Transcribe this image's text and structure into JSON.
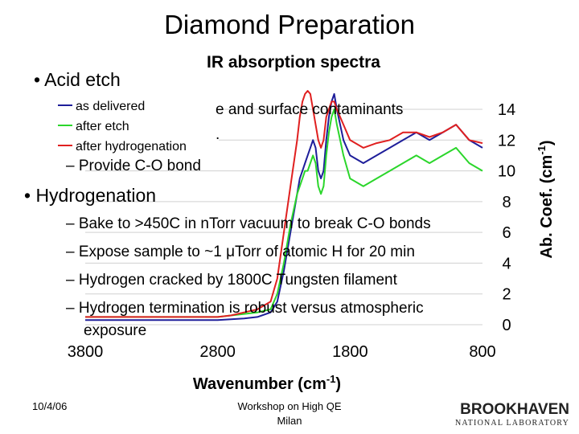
{
  "slide": {
    "title": "Diamond Preparation",
    "bullets": [
      {
        "text": "• Acid etch",
        "sub": [
          {
            "text": "e and surface contaminants"
          },
          {
            "text": "."
          },
          {
            "text": "– Provide C-O bond"
          }
        ]
      },
      {
        "text": "• Hydrogenation",
        "sub": [
          {
            "text": "– Bake to >450C in nTorr vacuum to break C-O bonds"
          },
          {
            "text": "– Expose sample to ~1 μTorr of atomic H for 20 min"
          },
          {
            "text": "– Hydrogen cracked by 1800C Tungsten filament"
          },
          {
            "text": "– Hydrogen termination is robust versus atmospheric"
          },
          {
            "text": "exposure"
          }
        ]
      }
    ]
  },
  "footer": {
    "date": "10/4/06",
    "line1": "Workshop on High QE",
    "line2": "Milan",
    "logo_name": "BROOKHAVEN",
    "logo_sub": "NATIONAL LABORATORY"
  },
  "chart_data": {
    "type": "line",
    "title": "IR absorption spectra",
    "xlabel": "Wavenumber (cm",
    "xlabel_sup": "-1",
    "xlabel_end": ")",
    "ylabel": "Ab. Coef. (cm",
    "ylabel_sup": "-1",
    "ylabel_end": ")",
    "xlim": [
      3800,
      800
    ],
    "ylim": [
      0,
      14
    ],
    "x_ticks": [
      "3800",
      "2800",
      "1800",
      "800"
    ],
    "y_ticks": [
      "0",
      "2",
      "4",
      "6",
      "8",
      "10",
      "12",
      "14"
    ],
    "legend": [
      "as delivered",
      "after etch",
      "after hydrogenation"
    ],
    "colors": {
      "as delivered": "#1e1e9a",
      "after etch": "#2bd62b",
      "after hydrogenation": "#e02020"
    },
    "x": [
      3800,
      3600,
      3400,
      3200,
      3000,
      2800,
      2700,
      2600,
      2500,
      2400,
      2350,
      2300,
      2250,
      2200,
      2180,
      2160,
      2140,
      2120,
      2100,
      2080,
      2060,
      2040,
      2020,
      2000,
      1980,
      1960,
      1940,
      1920,
      1900,
      1850,
      1800,
      1700,
      1600,
      1500,
      1400,
      1300,
      1200,
      1100,
      1000,
      900,
      800
    ],
    "series": [
      {
        "name": "as delivered",
        "values": [
          0.3,
          0.3,
          0.3,
          0.3,
          0.3,
          0.3,
          0.35,
          0.4,
          0.5,
          0.8,
          1.5,
          3.5,
          6.0,
          8.5,
          9.5,
          10.0,
          10.5,
          11.0,
          11.5,
          12.0,
          11.5,
          10.0,
          9.5,
          10.0,
          12.0,
          13.5,
          14.5,
          15.0,
          14.0,
          12.0,
          11.0,
          10.5,
          11.0,
          11.5,
          12.0,
          12.5,
          12.0,
          12.5,
          13.0,
          12.0,
          11.5
        ]
      },
      {
        "name": "after etch",
        "values": [
          0.5,
          0.5,
          0.5,
          0.5,
          0.5,
          0.5,
          0.6,
          0.7,
          0.8,
          1.0,
          2.0,
          4.0,
          6.5,
          8.5,
          9.0,
          9.5,
          10.0,
          10.0,
          10.5,
          11.0,
          10.5,
          9.0,
          8.5,
          9.0,
          11.0,
          12.5,
          13.5,
          14.0,
          13.0,
          11.0,
          9.5,
          9.0,
          9.5,
          10.0,
          10.5,
          11.0,
          10.5,
          11.0,
          11.5,
          10.5,
          10.0
        ]
      },
      {
        "name": "after hydrogenation",
        "values": [
          0.5,
          0.5,
          0.5,
          0.5,
          0.5,
          0.5,
          0.6,
          0.8,
          1.0,
          1.5,
          3.0,
          6.0,
          9.0,
          12.0,
          13.5,
          14.5,
          15.0,
          15.2,
          15.0,
          14.0,
          13.0,
          12.0,
          11.5,
          12.0,
          13.5,
          14.0,
          14.5,
          14.5,
          14.0,
          13.0,
          12.0,
          11.5,
          11.8,
          12.0,
          12.5,
          12.5,
          12.2,
          12.5,
          13.0,
          12.0,
          11.8
        ]
      }
    ]
  }
}
